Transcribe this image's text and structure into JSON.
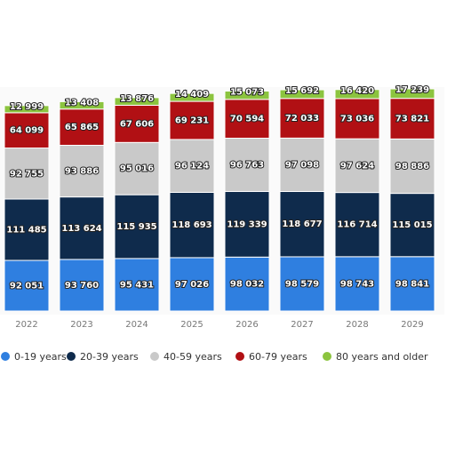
{
  "chart_data": {
    "type": "bar",
    "stacked": true,
    "categories": [
      "2022",
      "2023",
      "2024",
      "2025",
      "2026",
      "2027",
      "2028",
      "2029"
    ],
    "series": [
      {
        "name": "0-19 years",
        "color": "#2f7fe0",
        "values": [
          92051,
          93760,
          95431,
          97026,
          98032,
          98579,
          98743,
          98841
        ],
        "value_labels": [
          "92 051",
          "93 760",
          "95 431",
          "97 026",
          "98 032",
          "98 579",
          "98 743",
          "98 841"
        ]
      },
      {
        "name": "20-39 years",
        "color": "#0f2b4c",
        "values": [
          111485,
          113624,
          115935,
          118693,
          119339,
          118677,
          116714,
          115015
        ],
        "value_labels": [
          "111 485",
          "113 624",
          "115 935",
          "118 693",
          "119 339",
          "118 677",
          "116 714",
          "115 015"
        ]
      },
      {
        "name": "40-59 years",
        "color": "#c9c9c9",
        "values": [
          92755,
          93886,
          95016,
          96124,
          96763,
          97098,
          97624,
          98886
        ],
        "value_labels": [
          "92 755",
          "93 886",
          "95 016",
          "96 124",
          "96 763",
          "97 098",
          "97 624",
          "98 886"
        ]
      },
      {
        "name": "60-79 years",
        "color": "#b11014",
        "values": [
          64099,
          65865,
          67606,
          69231,
          70594,
          72033,
          73036,
          73821
        ],
        "value_labels": [
          "64 099",
          "65 865",
          "67 606",
          "69 231",
          "70 594",
          "72 033",
          "73 036",
          "73 821"
        ]
      },
      {
        "name": "80 years and older",
        "color": "#8cc43f",
        "values": [
          12999,
          13408,
          13876,
          14409,
          15073,
          15692,
          16420,
          17239
        ],
        "value_labels": [
          "12 999",
          "13 408",
          "13 876",
          "14 409",
          "15 073",
          "15 692",
          "16 420",
          "17 239"
        ]
      }
    ]
  }
}
